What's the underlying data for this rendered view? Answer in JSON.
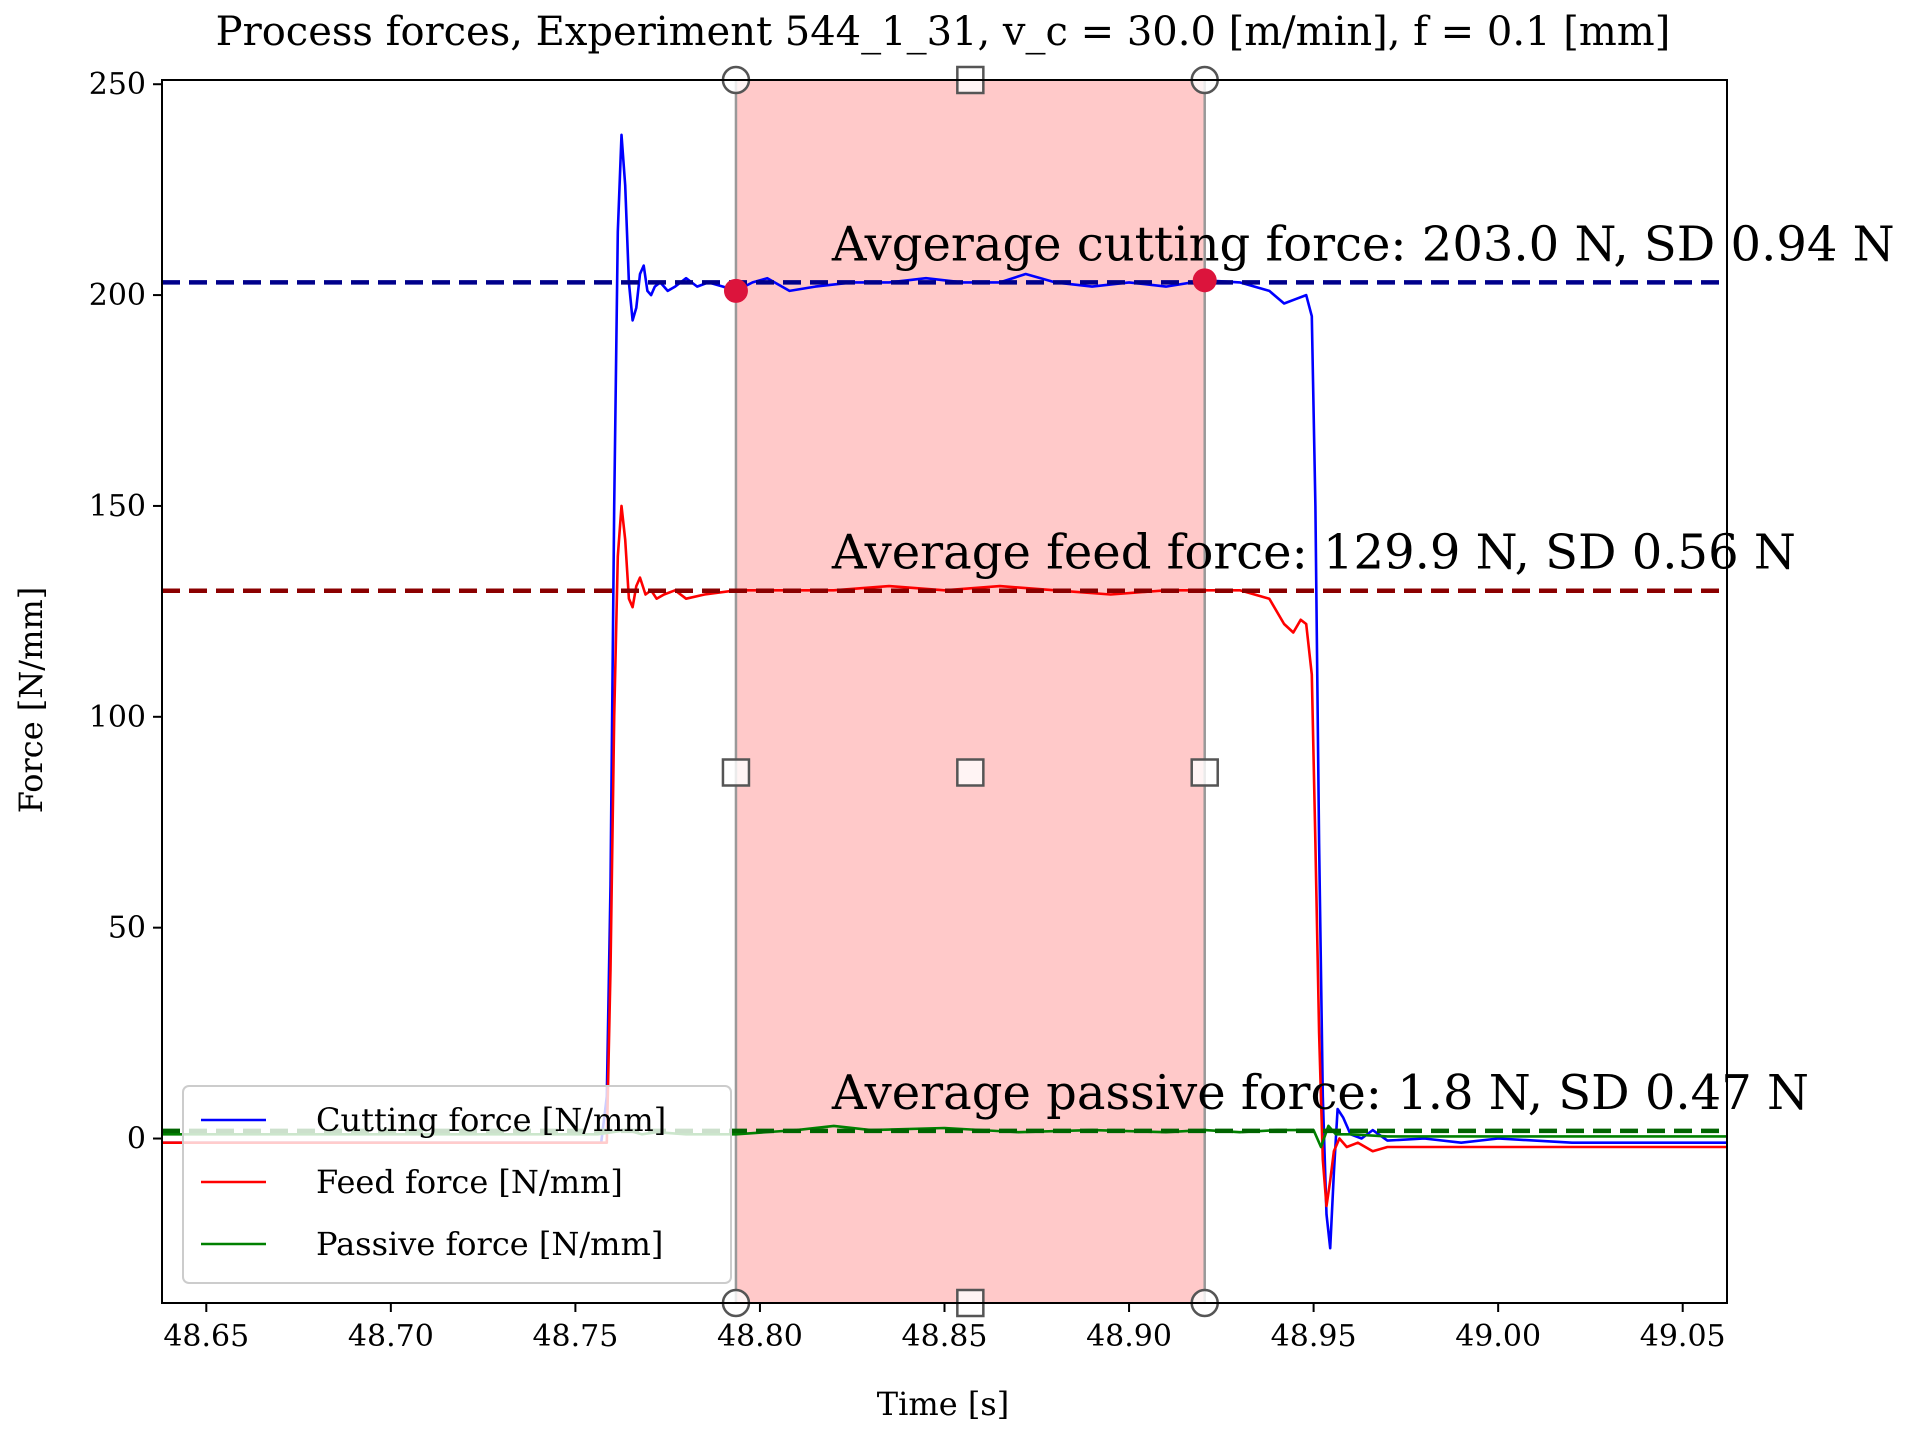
{
  "chart_data": {
    "type": "line",
    "title": "Process forces, Experiment 544_1_31, v_c = 30.0 [m/min], f = 0.1 [mm]",
    "xlabel": "Time [s]",
    "ylabel": "Force [N/mm]",
    "xlim": [
      48.638,
      49.062
    ],
    "ylim": [
      -39,
      251
    ],
    "xticks": [
      48.65,
      48.7,
      48.75,
      48.8,
      48.85,
      48.9,
      48.95,
      49.0,
      49.05
    ],
    "xtick_labels": [
      "48.65",
      "48.70",
      "48.75",
      "48.80",
      "48.85",
      "48.90",
      "48.95",
      "49.00",
      "49.05"
    ],
    "yticks": [
      0,
      50,
      100,
      150,
      200,
      250
    ],
    "ytick_labels": [
      "0",
      "50",
      "100",
      "150",
      "200",
      "250"
    ],
    "grid": false,
    "legend_position": "lower-left",
    "selection": {
      "x_start": 48.7935,
      "x_end": 48.9205,
      "color": "#ff9c9c"
    },
    "markers": [
      {
        "x": 48.7935,
        "y": 201
      },
      {
        "x": 48.9205,
        "y": 203.5
      }
    ],
    "series": [
      {
        "name": "Cutting force [N/mm]",
        "color": "#0000ff",
        "x": [
          48.638,
          48.7,
          48.757,
          48.7585,
          48.7595,
          48.7605,
          48.7615,
          48.7625,
          48.7635,
          48.7645,
          48.7655,
          48.7665,
          48.7675,
          48.7685,
          48.7695,
          48.7705,
          48.7715,
          48.773,
          48.775,
          48.777,
          48.78,
          48.783,
          48.786,
          48.79,
          48.7935,
          48.798,
          48.802,
          48.808,
          48.815,
          48.825,
          48.835,
          48.845,
          48.855,
          48.865,
          48.872,
          48.88,
          48.89,
          48.9,
          48.91,
          48.9205,
          48.93,
          48.938,
          48.942,
          48.945,
          48.948,
          48.9495,
          48.9505,
          48.9515,
          48.9525,
          48.9535,
          48.9545,
          48.9555,
          48.9565,
          48.958,
          48.96,
          48.963,
          48.966,
          48.97,
          48.98,
          48.99,
          49.0,
          49.02,
          49.04,
          49.062
        ],
        "values": [
          -1,
          -1,
          -1,
          10,
          60,
          150,
          215,
          238,
          226,
          203,
          194,
          197,
          205,
          207,
          201,
          200,
          202,
          203,
          201,
          202,
          204,
          202,
          203,
          202,
          201,
          203,
          204,
          201,
          202,
          203,
          203,
          204,
          203,
          203,
          205,
          203,
          202,
          203,
          202,
          203.5,
          203,
          201,
          198,
          199,
          200,
          195,
          150,
          70,
          10,
          -18,
          -26,
          -8,
          7,
          5,
          1,
          0,
          2,
          -0.5,
          0,
          -1,
          0,
          -1,
          -1,
          -1
        ]
      },
      {
        "name": "Feed force [N/mm]",
        "color": "#ff0000",
        "x": [
          48.638,
          48.7,
          48.7585,
          48.7595,
          48.7605,
          48.7615,
          48.7625,
          48.7635,
          48.7645,
          48.7655,
          48.7665,
          48.7675,
          48.769,
          48.7705,
          48.772,
          48.774,
          48.777,
          48.78,
          48.785,
          48.7935,
          48.805,
          48.82,
          48.835,
          48.85,
          48.865,
          48.88,
          48.895,
          48.91,
          48.9205,
          48.93,
          48.938,
          48.942,
          48.9445,
          48.9465,
          48.948,
          48.9495,
          48.9505,
          48.9515,
          48.9525,
          48.9535,
          48.9545,
          48.9555,
          48.957,
          48.959,
          48.962,
          48.966,
          48.97,
          48.98,
          49.0,
          49.03,
          49.062
        ],
        "values": [
          -1,
          -1,
          -1,
          40,
          100,
          138,
          150,
          142,
          128,
          126,
          131,
          133,
          129,
          130,
          128,
          129,
          130,
          128,
          129,
          130,
          130,
          130,
          131,
          130,
          131,
          130,
          129,
          130,
          130,
          130,
          128,
          122,
          120,
          123,
          122,
          110,
          70,
          25,
          -5,
          -16,
          -10,
          -3,
          0,
          -2,
          -1,
          -3,
          -2,
          -2,
          -2,
          -2,
          -2
        ]
      },
      {
        "name": "Passive force [N/mm]",
        "color": "#008000",
        "x": [
          48.638,
          48.7,
          48.756,
          48.76,
          48.764,
          48.768,
          48.772,
          48.78,
          48.7935,
          48.81,
          48.82,
          48.83,
          48.85,
          48.87,
          48.89,
          48.91,
          48.9205,
          48.93,
          48.94,
          48.95,
          48.952,
          48.954,
          48.956,
          48.96,
          48.97,
          48.98,
          49.0,
          49.03,
          49.062
        ],
        "values": [
          1,
          1,
          1,
          1.5,
          2,
          1,
          1.5,
          1,
          1,
          2,
          3,
          2,
          2.5,
          1.5,
          2,
          1.5,
          2,
          1.5,
          2,
          2,
          -2,
          3,
          1,
          1,
          0.5,
          0.5,
          0.5,
          0.5,
          0.5
        ]
      }
    ],
    "averages": [
      {
        "value": 203.0,
        "color": "#00008b",
        "label": "Avgerage cutting force: 203.0 N, SD 0.94 N",
        "label_x": 48.8195
      },
      {
        "value": 129.9,
        "color": "#8b0000",
        "label": "Average feed force: 129.9 N, SD 0.56 N",
        "label_x": 48.8195
      },
      {
        "value": 1.8,
        "color": "#006400",
        "label": "Average passive force: 1.8 N, SD 0.47 N",
        "label_x": 48.8195
      }
    ]
  }
}
